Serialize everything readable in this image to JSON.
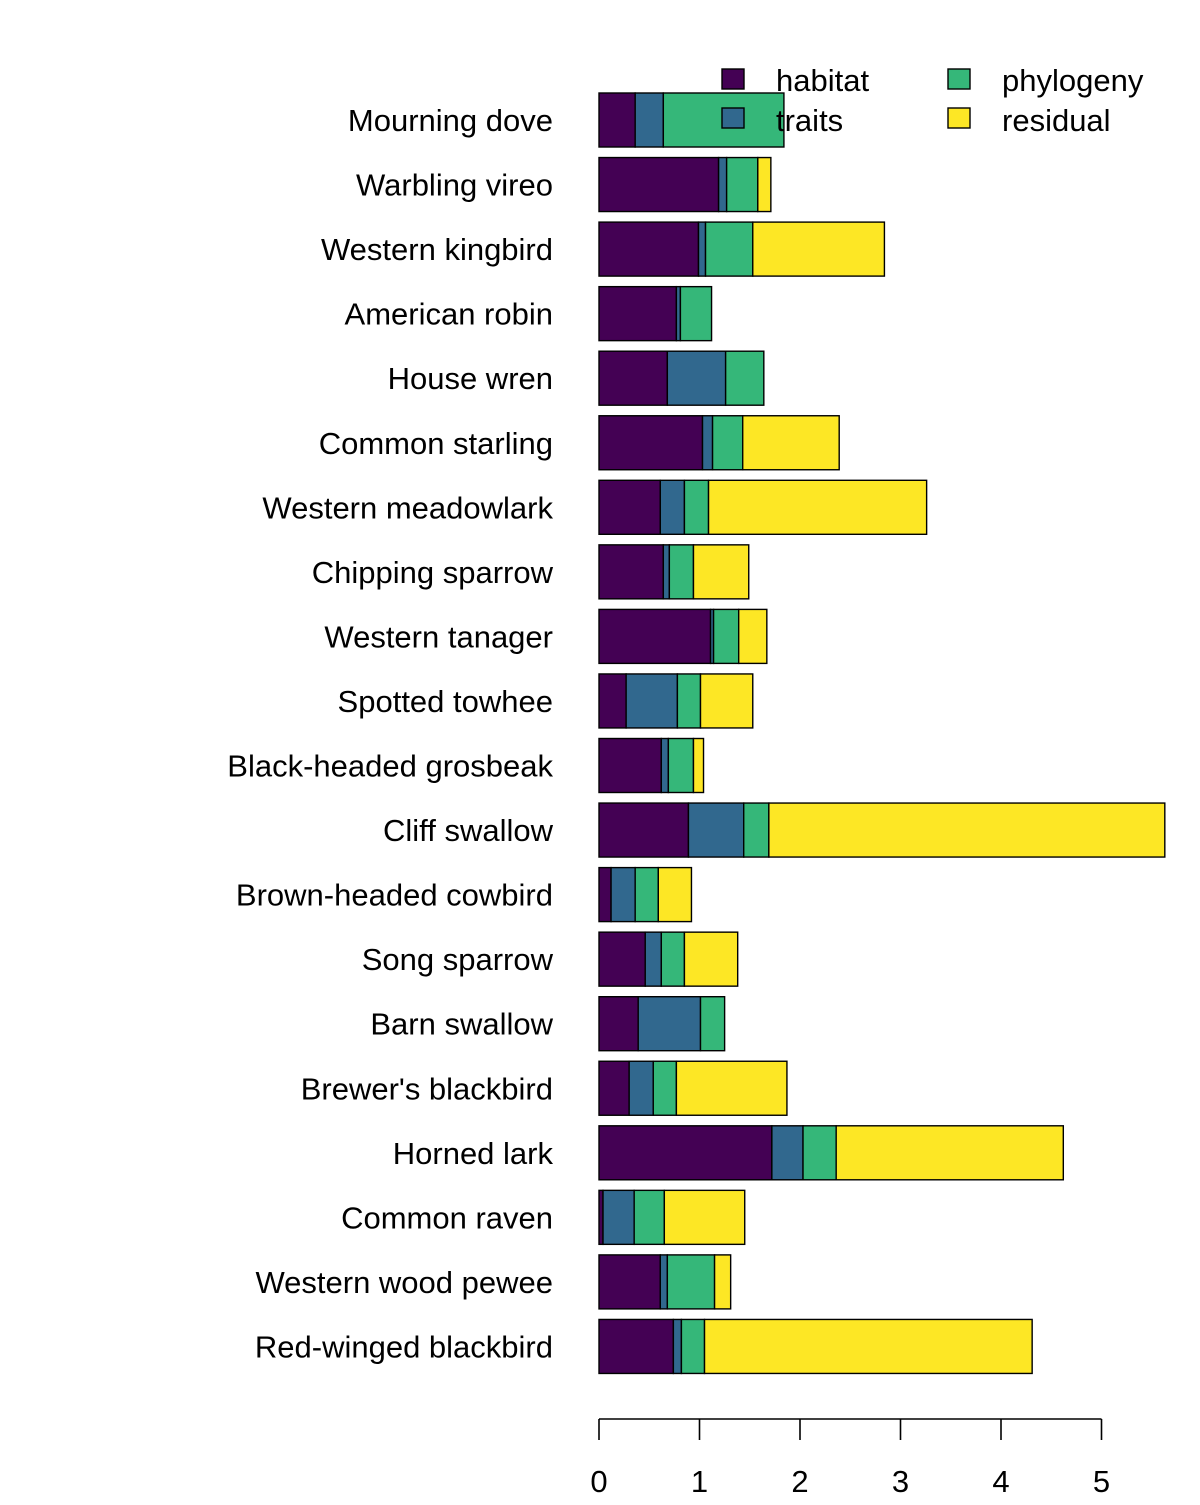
{
  "chart_data": {
    "type": "bar",
    "orientation": "horizontal",
    "stacked": true,
    "title": "",
    "xlabel": "",
    "ylabel": "",
    "xlim": [
      0,
      5.6
    ],
    "xticks": [
      "0",
      "1",
      "2",
      "3",
      "4",
      "5"
    ],
    "grid": false,
    "legend_position": "top-right",
    "categories": [
      "Mourning dove",
      "Warbling vireo",
      "Western kingbird",
      "American robin",
      "House wren",
      "Common starling",
      "Western meadowlark",
      "Chipping sparrow",
      "Western tanager",
      "Spotted towhee",
      "Black-headed grosbeak",
      "Cliff swallow",
      "Brown-headed cowbird",
      "Song sparrow",
      "Barn swallow",
      "Brewer's blackbird",
      "Horned lark",
      "Common raven",
      "Western wood pewee",
      "Red-winged blackbird"
    ],
    "series": [
      {
        "name": "habitat",
        "color": "#440154",
        "values": [
          0.36,
          1.19,
          0.99,
          0.77,
          0.68,
          1.03,
          0.61,
          0.64,
          1.11,
          0.27,
          0.62,
          0.89,
          0.12,
          0.46,
          0.39,
          0.3,
          1.72,
          0.04,
          0.61,
          0.74
        ]
      },
      {
        "name": "traits",
        "color": "#31688E",
        "values": [
          0.28,
          0.08,
          0.07,
          0.04,
          0.58,
          0.1,
          0.24,
          0.06,
          0.03,
          0.51,
          0.07,
          0.55,
          0.24,
          0.16,
          0.62,
          0.24,
          0.31,
          0.31,
          0.07,
          0.08
        ]
      },
      {
        "name": "phylogeny",
        "color": "#35B779",
        "values": [
          1.2,
          0.31,
          0.47,
          0.31,
          0.38,
          0.3,
          0.24,
          0.24,
          0.25,
          0.23,
          0.25,
          0.25,
          0.23,
          0.23,
          0.24,
          0.23,
          0.33,
          0.3,
          0.47,
          0.23
        ]
      },
      {
        "name": "residual",
        "color": "#FDE725",
        "values": [
          0.0,
          0.13,
          1.31,
          0.0,
          0.0,
          0.96,
          2.17,
          0.55,
          0.28,
          0.52,
          0.1,
          3.94,
          0.33,
          0.53,
          0.0,
          1.1,
          2.26,
          0.8,
          0.16,
          3.26
        ]
      }
    ]
  }
}
